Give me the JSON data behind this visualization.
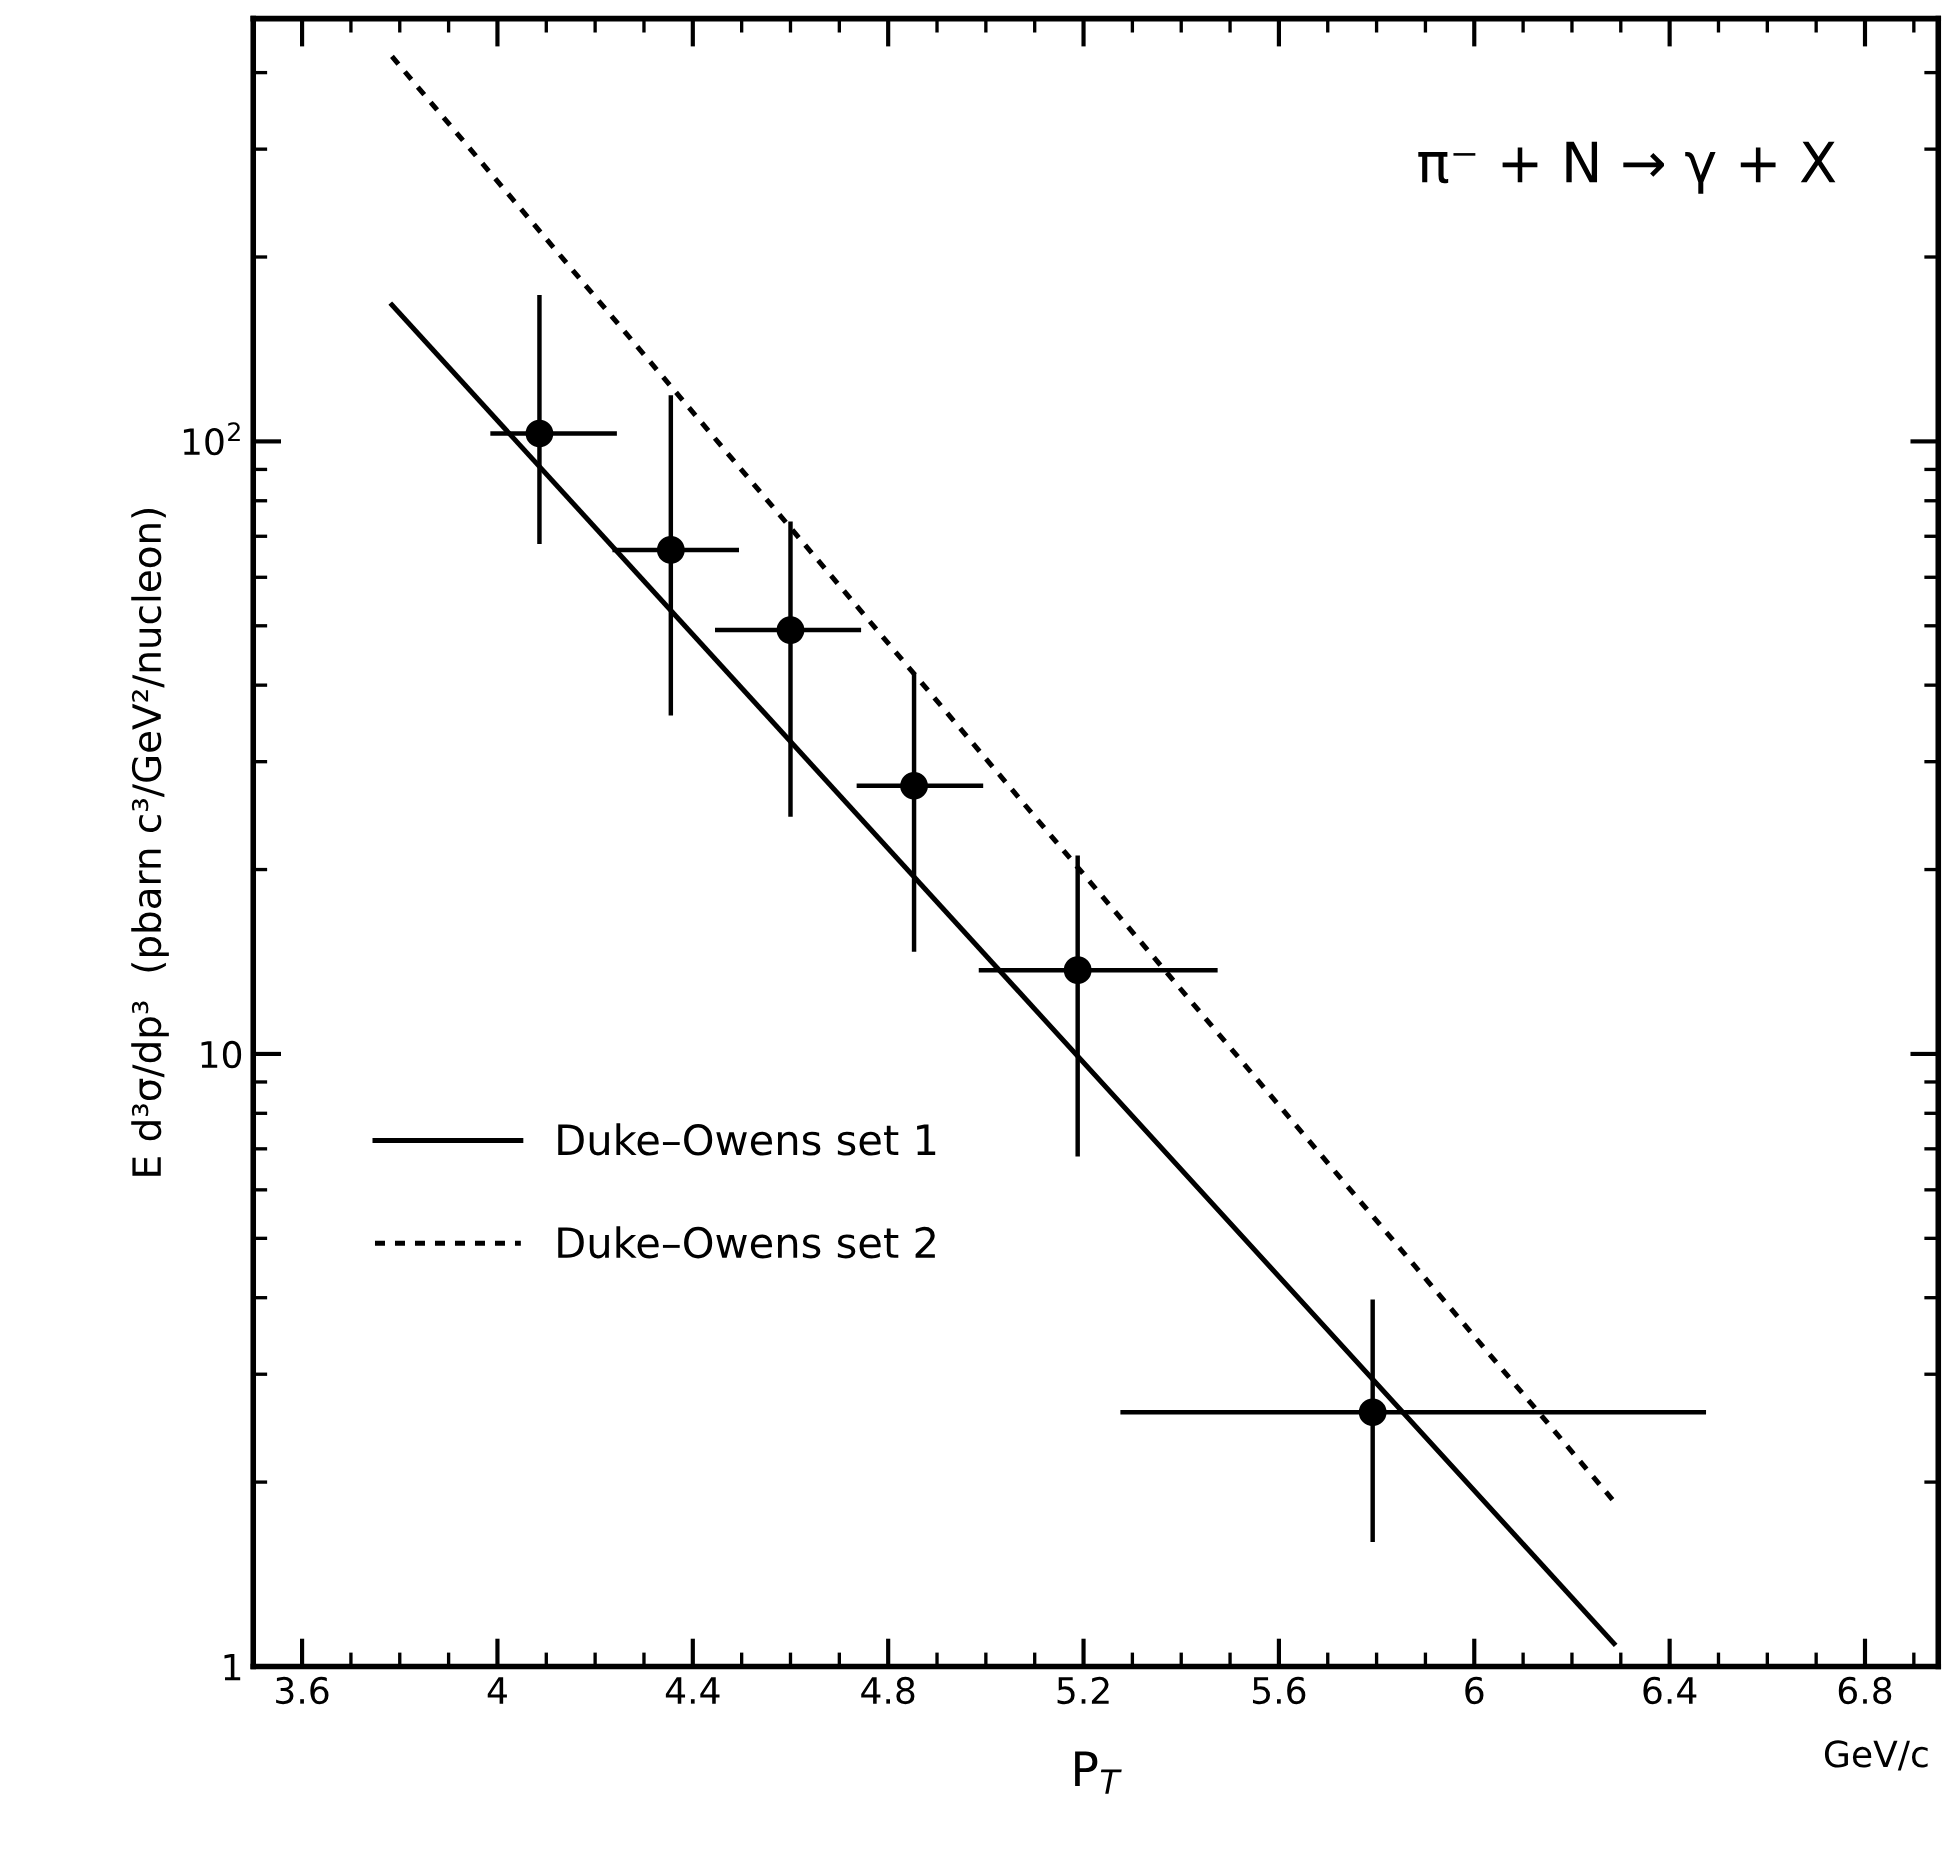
{
  "chart_data": {
    "type": "scatter",
    "xlabel": "P$_{T}$",
    "ylabel": "E d³σ/dp³  (pbarn c³/GeV²/nucleon)",
    "annotations": [
      "π⁻ + N → γ + X",
      "GeV/c"
    ],
    "log": "y",
    "xlim": [
      3.5,
      6.95
    ],
    "ylim": [
      1,
      490
    ],
    "xticks": [
      3.6,
      4,
      4.4,
      4.8,
      5.2,
      5.6,
      6,
      6.4,
      6.8
    ],
    "yticks": [
      1,
      10,
      {
        "value": 100,
        "label": "10$^{2}$"
      }
    ],
    "grid": false,
    "legend": "bottom left",
    "series": [
      {
        "color": "#000000",
        "marker": "circle",
        "x": [
          4.086,
          4.355,
          4.6,
          4.853,
          5.188,
          5.792
        ],
        "values": [
          103,
          66.5,
          49.2,
          27.4,
          13.7,
          2.6
        ],
        "errors": [
          [
            68.6,
            172
          ],
          [
            36,
            118
          ],
          [
            24.6,
            73.4
          ],
          [
            14.8,
            41.4
          ],
          [
            6.86,
            20.9
          ],
          [
            1.61,
            3.94
          ]
        ],
        "xerrors": [
          [
            3.99,
            4.24
          ],
          [
            4.24,
            4.49
          ],
          [
            4.45,
            4.74
          ],
          [
            4.74,
            4.99
          ],
          [
            4.99,
            5.47
          ],
          [
            5.28,
            6.47
          ]
        ]
      },
      {
        "type": "line",
        "name": "Duke–Owens set 1",
        "color": "#000000",
        "line_style": "solid",
        "x": [
          3.784,
          6.286
        ],
        "values": [
          167,
          1.09
        ]
      },
      {
        "type": "line",
        "name": "Duke–Owens set 2",
        "color": "#000000",
        "line_style": "dotted",
        "x": [
          3.784,
          6.286
        ],
        "values": [
          425,
          1.86
        ]
      }
    ]
  }
}
